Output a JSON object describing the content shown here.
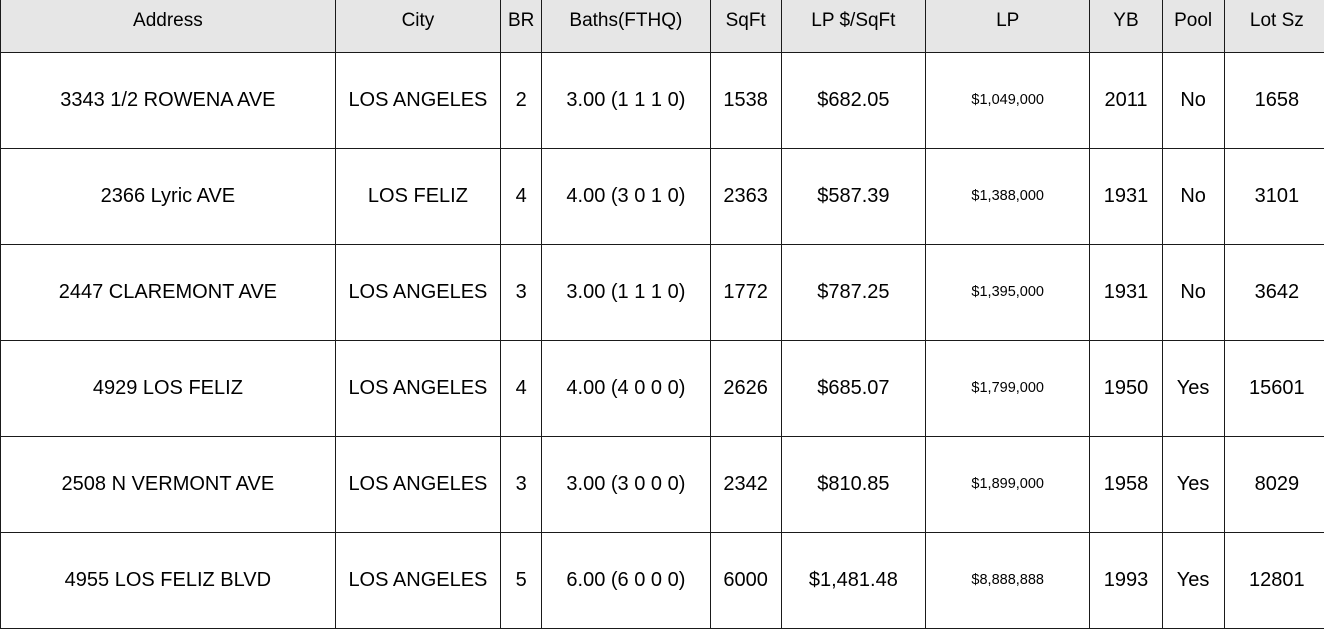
{
  "headers": {
    "address": "Address",
    "city": "City",
    "br": "BR",
    "baths": "Baths(FTHQ)",
    "sqft": "SqFt",
    "lp_per_sqft": "LP $/SqFt",
    "lp": "LP",
    "yb": "YB",
    "pool": "Pool",
    "lot_sz": "Lot Sz"
  },
  "rows": [
    {
      "address": "3343 1/2  ROWENA AVE",
      "city": "LOS ANGELES",
      "br": "2",
      "baths": "3.00 (1 1 1 0)",
      "sqft": "1538",
      "lp_per_sqft": "$682.05",
      "lp": "$1,049,000",
      "yb": "2011",
      "pool": "No",
      "lot_sz": "1658"
    },
    {
      "address": "2366   Lyric AVE",
      "city": "LOS FELIZ",
      "br": "4",
      "baths": "4.00 (3 0 1 0)",
      "sqft": "2363",
      "lp_per_sqft": "$587.39",
      "lp": "$1,388,000",
      "yb": "1931",
      "pool": "No",
      "lot_sz": "3101"
    },
    {
      "address": "2447   CLAREMONT AVE",
      "city": "LOS ANGELES",
      "br": "3",
      "baths": "3.00 (1 1 1 0)",
      "sqft": "1772",
      "lp_per_sqft": "$787.25",
      "lp": "$1,395,000",
      "yb": "1931",
      "pool": "No",
      "lot_sz": "3642"
    },
    {
      "address": "4929   LOS FELIZ",
      "city": "LOS ANGELES",
      "br": "4",
      "baths": "4.00 (4 0 0 0)",
      "sqft": "2626",
      "lp_per_sqft": "$685.07",
      "lp": "$1,799,000",
      "yb": "1950",
      "pool": "Yes",
      "lot_sz": "15601"
    },
    {
      "address": "2508  N VERMONT AVE",
      "city": "LOS ANGELES",
      "br": "3",
      "baths": "3.00 (3 0 0 0)",
      "sqft": "2342",
      "lp_per_sqft": "$810.85",
      "lp": "$1,899,000",
      "yb": "1958",
      "pool": "Yes",
      "lot_sz": "8029"
    },
    {
      "address": "4955   LOS FELIZ BLVD",
      "city": "LOS ANGELES",
      "br": "5",
      "baths": "6.00 (6 0 0 0)",
      "sqft": "6000",
      "lp_per_sqft": "$1,481.48",
      "lp": "$8,888,888",
      "yb": "1993",
      "pool": "Yes",
      "lot_sz": "12801"
    }
  ]
}
